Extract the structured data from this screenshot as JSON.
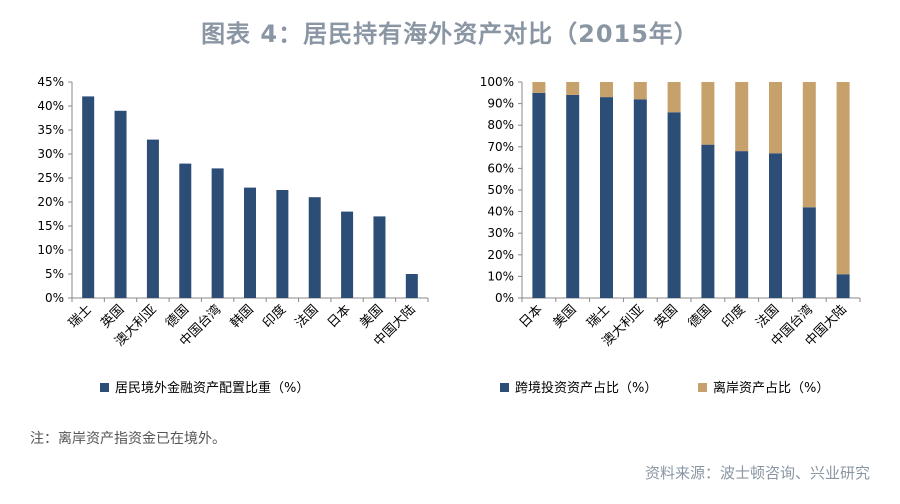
{
  "header": {
    "title": "图表 4：居民持有海外资产对比（2015年）"
  },
  "footer": {
    "note": "注：离岸资产指资金已在境外。",
    "source": "资料来源：波士顿咨询、兴业研究"
  },
  "colors": {
    "primary": "#2b4d76",
    "secondary": "#c7a16b",
    "title": "#8a96a3"
  },
  "chart_data": [
    {
      "type": "bar",
      "categories": [
        "瑞士",
        "英国",
        "澳大利亚",
        "德国",
        "中国台湾",
        "韩国",
        "印度",
        "法国",
        "日本",
        "美国",
        "中国大陆"
      ],
      "series": [
        {
          "name": "居民境外金融资产配置比重（%）",
          "values": [
            42,
            39,
            33,
            28,
            27,
            23,
            22.5,
            21,
            18,
            17,
            5
          ]
        }
      ],
      "ylim": [
        0,
        45
      ],
      "yticks": [
        "0%",
        "5%",
        "10%",
        "15%",
        "20%",
        "25%",
        "30%",
        "35%",
        "40%",
        "45%"
      ],
      "legend": "bottom"
    },
    {
      "type": "bar",
      "stacked": true,
      "categories": [
        "日本",
        "美国",
        "瑞士",
        "澳大利亚",
        "英国",
        "德国",
        "印度",
        "法国",
        "中国台湾",
        "中国大陆"
      ],
      "series": [
        {
          "name": "跨境投资资产占比（%）",
          "values": [
            95,
            94,
            93,
            92,
            86,
            71,
            68,
            67,
            42,
            11
          ]
        },
        {
          "name": "离岸资产占比（%）",
          "values": [
            5,
            6,
            7,
            8,
            14,
            29,
            32,
            33,
            58,
            89
          ]
        }
      ],
      "ylim": [
        0,
        100
      ],
      "yticks": [
        "0%",
        "10%",
        "20%",
        "30%",
        "40%",
        "50%",
        "60%",
        "70%",
        "80%",
        "90%",
        "100%"
      ],
      "legend": "bottom"
    }
  ]
}
